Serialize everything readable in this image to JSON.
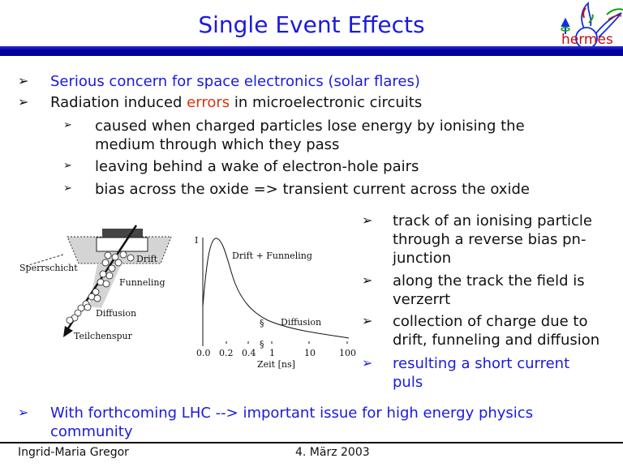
{
  "title": "Single Event Effects",
  "logo": {
    "text": "hermes",
    "colors": {
      "text": "#c01010",
      "wing": "#1030e0",
      "accent_green": "#10a010"
    }
  },
  "colors": {
    "header_bar": "#0000a8",
    "bullet_blue": "#1a1ae0",
    "highlight_red": "#e03010"
  },
  "bullets": [
    {
      "text": "Serious concern for space electronics (solar flares)"
    },
    {
      "pre": "Radiation induced ",
      "highlight": "errors",
      "post": " in microelectronic circuits",
      "sub": [
        {
          "lines": [
            "caused when charged particles lose energy by ionising the",
            "medium through which they pass"
          ]
        },
        {
          "lines": [
            "leaving behind a wake of electron-hole pairs"
          ]
        },
        {
          "lines": [
            "bias across the oxide => transient current across the oxide"
          ]
        }
      ]
    }
  ],
  "right_bullets": [
    {
      "lines": [
        "track of an ionising particle",
        "through a reverse bias pn-",
        "junction"
      ]
    },
    {
      "lines": [
        "along the track the field is",
        "verzerrt"
      ]
    },
    {
      "lines": [
        "collection of charge due to",
        "drift, funneling and diffusion"
      ]
    },
    {
      "lines": [
        "resulting a short current",
        "puls"
      ]
    }
  ],
  "bottom_bullet": {
    "lines": [
      "With forthcoming LHC --> important issue for high energy physics",
      "community"
    ]
  },
  "diagram": {
    "labels": {
      "sperrschicht": "Sperrschicht",
      "drift": "Drift",
      "funneling": "Funneling",
      "diffusion": "Diffusion",
      "teilchenspur": "Teilchenspur"
    },
    "plot": {
      "ylabel": "I",
      "curve_label_1": "Drift + Funneling",
      "curve_label_2": "Diffusion",
      "xticks": [
        "0.0",
        "0.2",
        "0.4",
        "1",
        "10",
        "100"
      ],
      "xlabel": "Zeit [ns]"
    }
  },
  "footer": {
    "author": "Ingrid-Maria Gregor",
    "date": "4. März 2003"
  }
}
